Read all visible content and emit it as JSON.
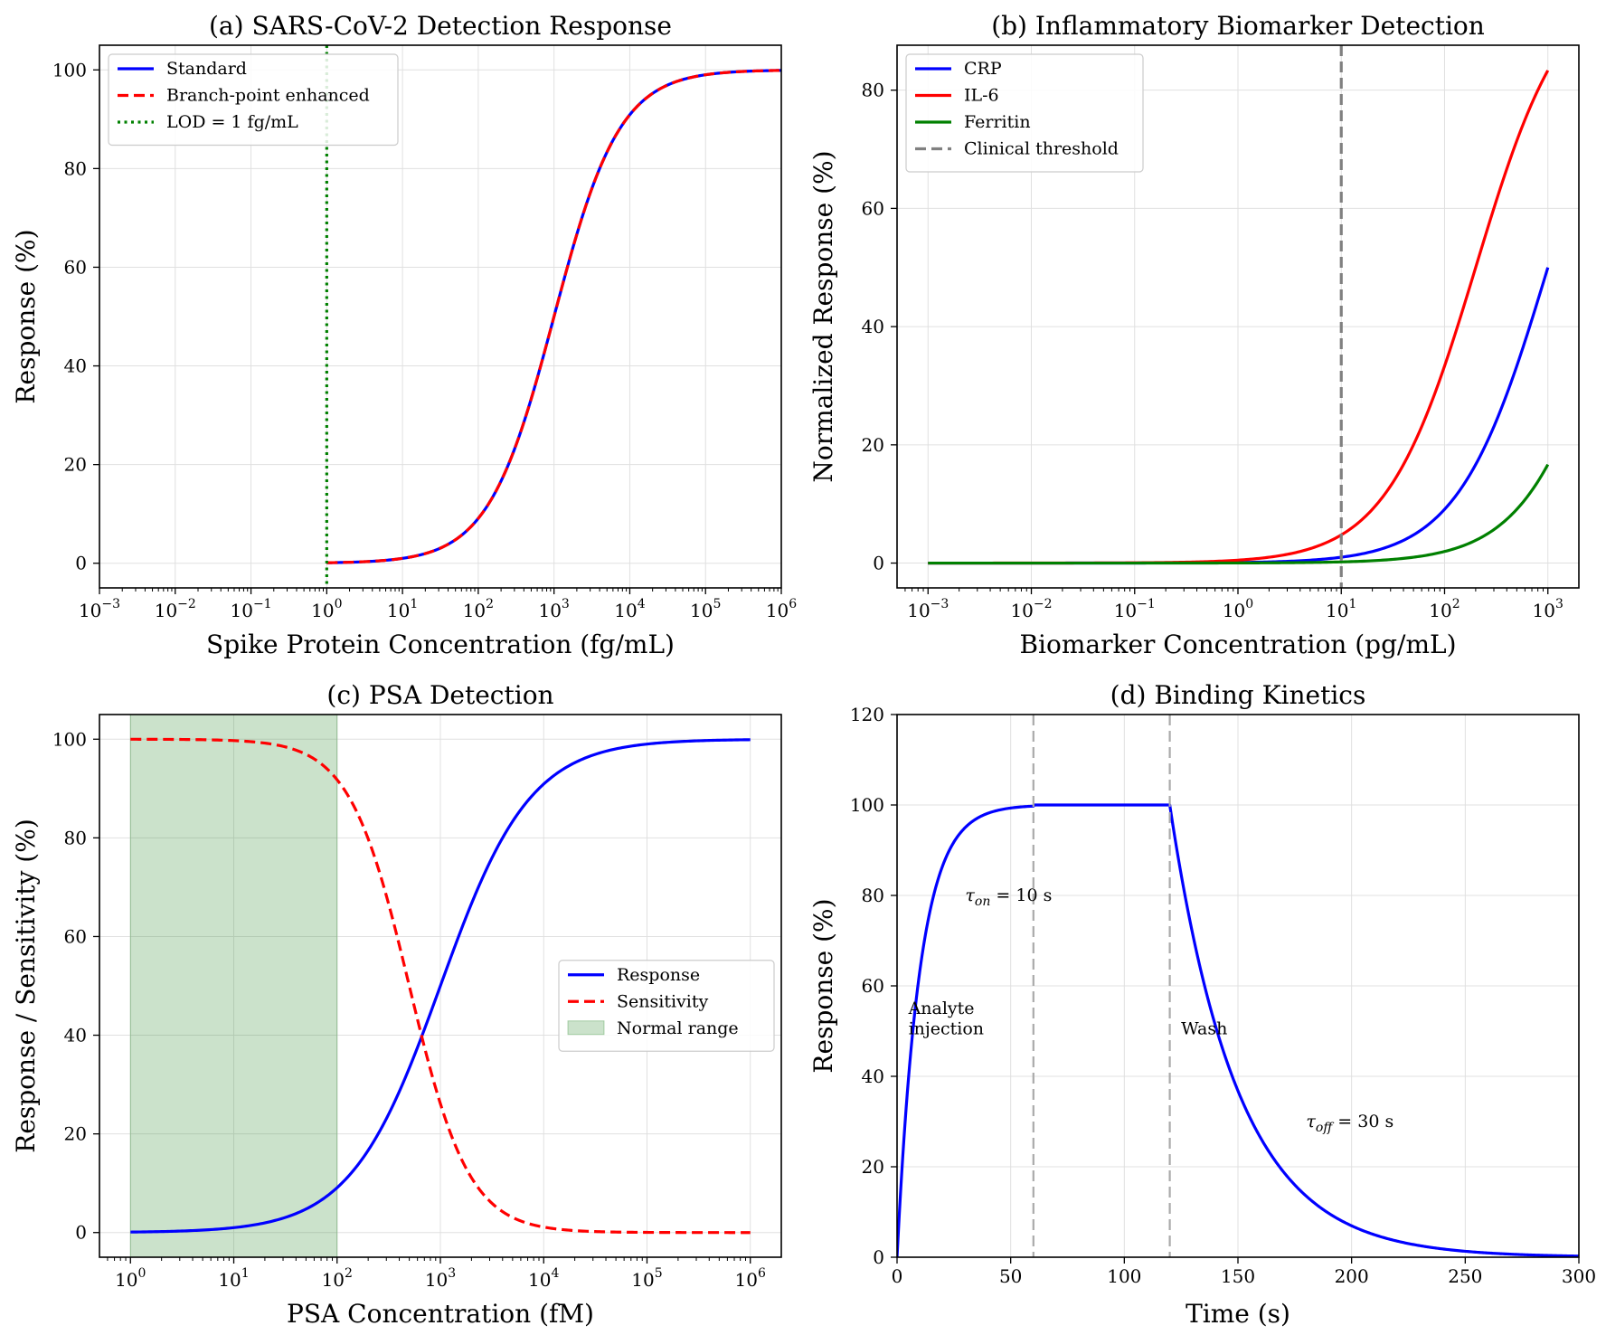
{
  "chart_data": [
    {
      "id": "a",
      "type": "line",
      "title": "(a) SARS-CoV-2 Detection Response",
      "xlabel": "Spike Protein Concentration (fg/mL)",
      "ylabel": "Response (%)",
      "xscale": "log",
      "xlim_exp": [
        -3,
        6
      ],
      "ylim": [
        -5,
        105
      ],
      "yticks": [
        0,
        20,
        40,
        60,
        80,
        100
      ],
      "xtick_labels": [
        "10",
        "10",
        "10",
        "10",
        "10",
        "10",
        "10",
        "10",
        "10",
        "10"
      ],
      "xtick_exps": [
        "−3",
        "−2",
        "−1",
        "0",
        "1",
        "2",
        "3",
        "4",
        "5",
        "6"
      ],
      "legend_position": "upper-left",
      "series": [
        {
          "name": "Standard",
          "color": "#0000ff",
          "style": "solid",
          "model": "hill",
          "ec50": 1000,
          "n": 1,
          "x_range_exp": [
            0,
            6
          ]
        },
        {
          "name": "Branch-point enhanced",
          "color": "#ff0000",
          "style": "dashed",
          "model": "hill",
          "ec50": 1000,
          "n": 1,
          "x_range_exp": [
            0,
            6
          ]
        }
      ],
      "vlines": [
        {
          "name": "LOD = 1 fg/mL",
          "x": 1,
          "color": "#008000",
          "style": "dotted"
        }
      ]
    },
    {
      "id": "b",
      "type": "line",
      "title": "(b) Inflammatory Biomarker Detection",
      "xlabel": "Biomarker Concentration (pg/mL)",
      "ylabel": "Normalized Response (%)",
      "xscale": "log",
      "xlim_exp": [
        -3.3,
        3.3
      ],
      "ylim": [
        -4.2,
        87.6
      ],
      "yticks": [
        0,
        20,
        40,
        60,
        80
      ],
      "xtick_labels": [
        "10",
        "10",
        "10",
        "10",
        "10",
        "10",
        "10"
      ],
      "xtick_exps": [
        "−3",
        "−2",
        "−1",
        "0",
        "1",
        "2",
        "3"
      ],
      "legend_position": "upper-left",
      "series": [
        {
          "name": "CRP",
          "color": "#0000ff",
          "style": "solid",
          "model": "hill",
          "ec50": 1000,
          "n": 1,
          "max": 100,
          "x_range_exp": [
            -3,
            3
          ]
        },
        {
          "name": "IL-6",
          "color": "#ff0000",
          "style": "solid",
          "model": "hill",
          "ec50": 200,
          "n": 1,
          "max": 100,
          "x_range_exp": [
            -3,
            3
          ]
        },
        {
          "name": "Ferritin",
          "color": "#008000",
          "style": "solid",
          "model": "hill",
          "ec50": 5000,
          "n": 1,
          "max": 100,
          "x_range_exp": [
            -3,
            3
          ]
        }
      ],
      "vlines": [
        {
          "name": "Clinical threshold",
          "x": 10,
          "color": "#808080",
          "style": "dashed"
        }
      ]
    },
    {
      "id": "c",
      "type": "line",
      "title": "(c) PSA Detection",
      "xlabel": "PSA Concentration (fM)",
      "ylabel": "Response / Sensitivity (%)",
      "xscale": "log",
      "xlim_exp": [
        -0.3,
        6.3
      ],
      "ylim": [
        -5,
        105
      ],
      "yticks": [
        0,
        20,
        40,
        60,
        80,
        100
      ],
      "xtick_labels": [
        "10",
        "10",
        "10",
        "10",
        "10",
        "10",
        "10"
      ],
      "xtick_exps": [
        "0",
        "1",
        "2",
        "3",
        "4",
        "5",
        "6"
      ],
      "legend_position": "center-right",
      "series": [
        {
          "name": "Response",
          "color": "#0000ff",
          "style": "solid",
          "model": "hill",
          "ec50": 1000,
          "n": 1,
          "x_range_exp": [
            0,
            6
          ]
        },
        {
          "name": "Sensitivity",
          "color": "#ff0000",
          "style": "dashed",
          "model": "hill_decay",
          "ec50": 500,
          "n": 1.5,
          "x_range_exp": [
            0,
            6
          ]
        }
      ],
      "spans": [
        {
          "name": "Normal range",
          "x0": 1,
          "x1": 100,
          "color": "#2e8b2e"
        }
      ]
    },
    {
      "id": "d",
      "type": "line",
      "title": "(d) Binding Kinetics",
      "xlabel": "Time (s)",
      "ylabel": "Response (%)",
      "xscale": "linear",
      "xlim": [
        0,
        300
      ],
      "ylim": [
        0,
        120
      ],
      "xticks": [
        0,
        50,
        100,
        150,
        200,
        250,
        300
      ],
      "yticks": [
        0,
        20,
        40,
        60,
        80,
        100,
        120
      ],
      "series": [
        {
          "name": "Response",
          "color": "#0000ff",
          "style": "solid",
          "model": "kinetics",
          "tau_on": 10,
          "tau_off": 30,
          "t_inject": 0,
          "t_assoc_end": 60,
          "t_wash": 120
        }
      ],
      "vlines": [
        {
          "x": 60,
          "color": "#aaaaaa",
          "style": "dashed"
        },
        {
          "x": 120,
          "color": "#aaaaaa",
          "style": "dashed"
        }
      ],
      "annotations": [
        {
          "text": "Analyte",
          "x": 5,
          "y": 55
        },
        {
          "text": "injection",
          "x": 5,
          "y": 50.5
        },
        {
          "text": "Wash",
          "x": 125,
          "y": 50.5
        },
        {
          "tau": "τ",
          "sub": "on",
          "rest": " = 10 s",
          "x": 30,
          "y": 80
        },
        {
          "tau": "τ",
          "sub": "off",
          "rest": " = 30 s",
          "x": 180,
          "y": 30
        }
      ]
    }
  ]
}
